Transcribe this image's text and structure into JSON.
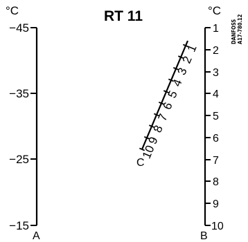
{
  "title": "RT 11",
  "unit_left": "°C",
  "unit_right": "°C",
  "brand": {
    "line1": "DANFOSS",
    "line2": "A17-780.12"
  },
  "scale_a": {
    "label": "A",
    "ticks": [
      "−45",
      "−35",
      "−25",
      "−15"
    ]
  },
  "scale_b": {
    "label": "B",
    "ticks": [
      "1",
      "2",
      "3",
      "4",
      "5",
      "6",
      "7",
      "8",
      "9",
      "10"
    ]
  },
  "scale_c": {
    "label": "C",
    "ticks": [
      "1",
      "2",
      "3",
      "4",
      "5",
      "6",
      "7",
      "8",
      "9",
      "10"
    ]
  },
  "colors": {
    "ink": "#000000",
    "background": "#ffffff"
  }
}
